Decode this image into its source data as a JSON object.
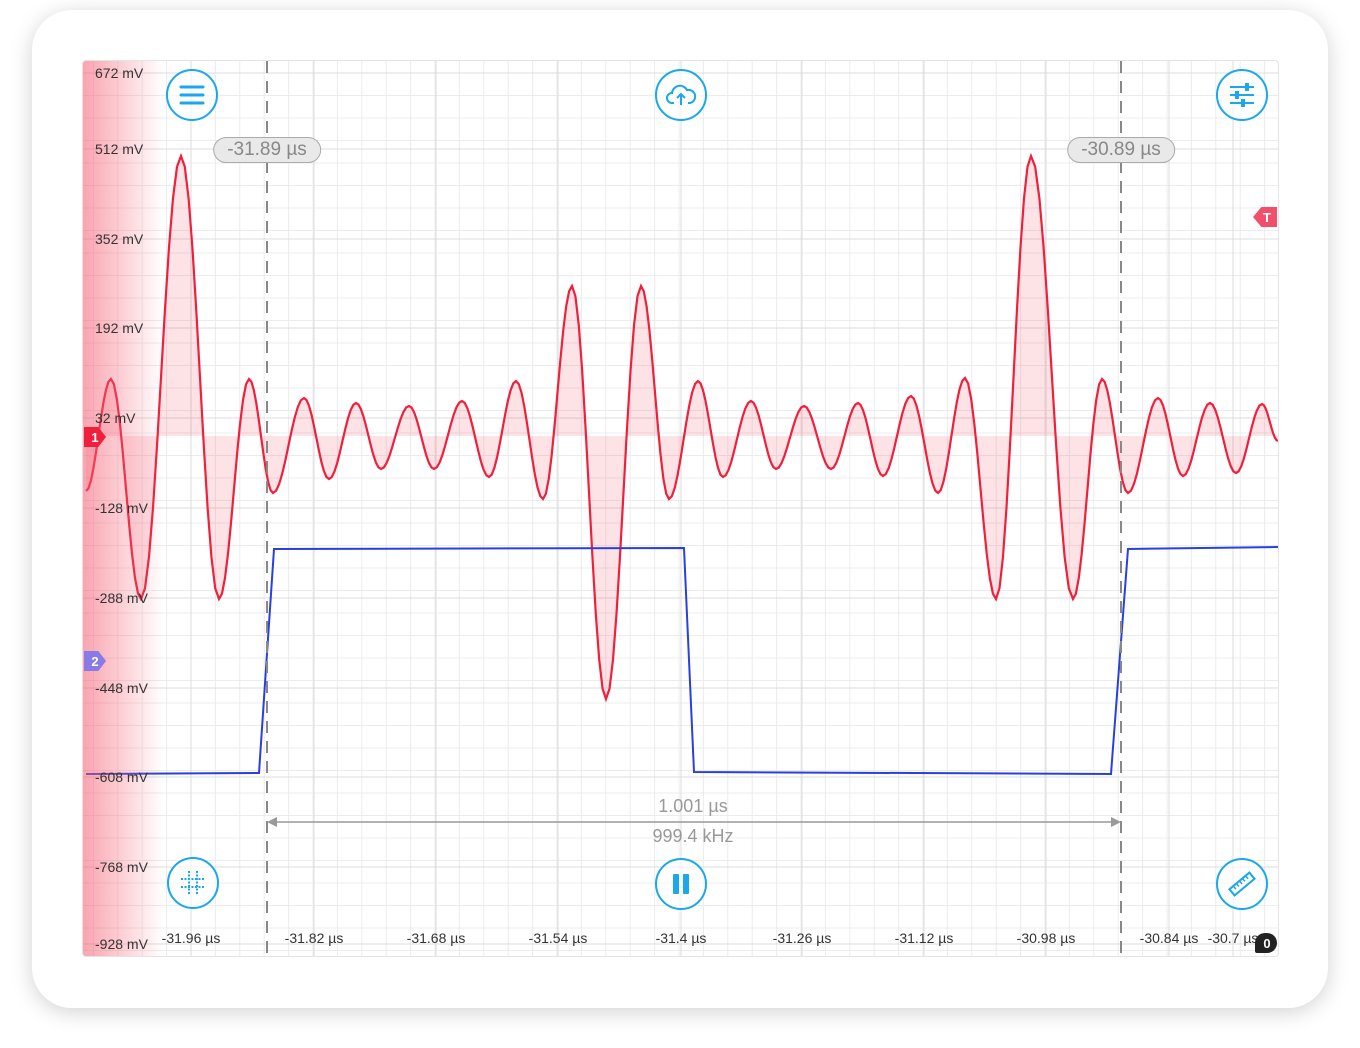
{
  "y_axis": {
    "unit": "mV",
    "labels": [
      "672 mV",
      "512 mV",
      "352 mV",
      "192 mV",
      "32 mV",
      "-128 mV",
      "-288 mV",
      "-448 mV",
      "-608 mV",
      "-768 mV",
      "-928 mV"
    ]
  },
  "x_axis": {
    "unit": "µs",
    "labels": [
      "-31.96 µs",
      "-31.82 µs",
      "-31.68 µs",
      "-31.54 µs",
      "-31.4 µs",
      "-31.26 µs",
      "-31.12 µs",
      "-30.98 µs",
      "-30.84 µs",
      "-30.7 µs"
    ]
  },
  "cursors": {
    "left": "-31.89 µs",
    "right": "-30.89 µs",
    "delta_time": "1.001 µs",
    "frequency": "999.4 kHz"
  },
  "markers": {
    "channel1": "1",
    "channel2": "2",
    "trigger": "T",
    "time_origin": "0"
  },
  "buttons": {
    "menu": "menu-icon",
    "upload": "cloud-upload-icon",
    "settings": "sliders-icon",
    "grid": "grid-icon",
    "pause": "pause-icon",
    "measure": "ruler-icon"
  },
  "colors": {
    "channel1": "#f0203c",
    "channel2": "#2a3fe0",
    "accent": "#1aa7ec",
    "channel2_marker": "#8a7ae8"
  }
}
